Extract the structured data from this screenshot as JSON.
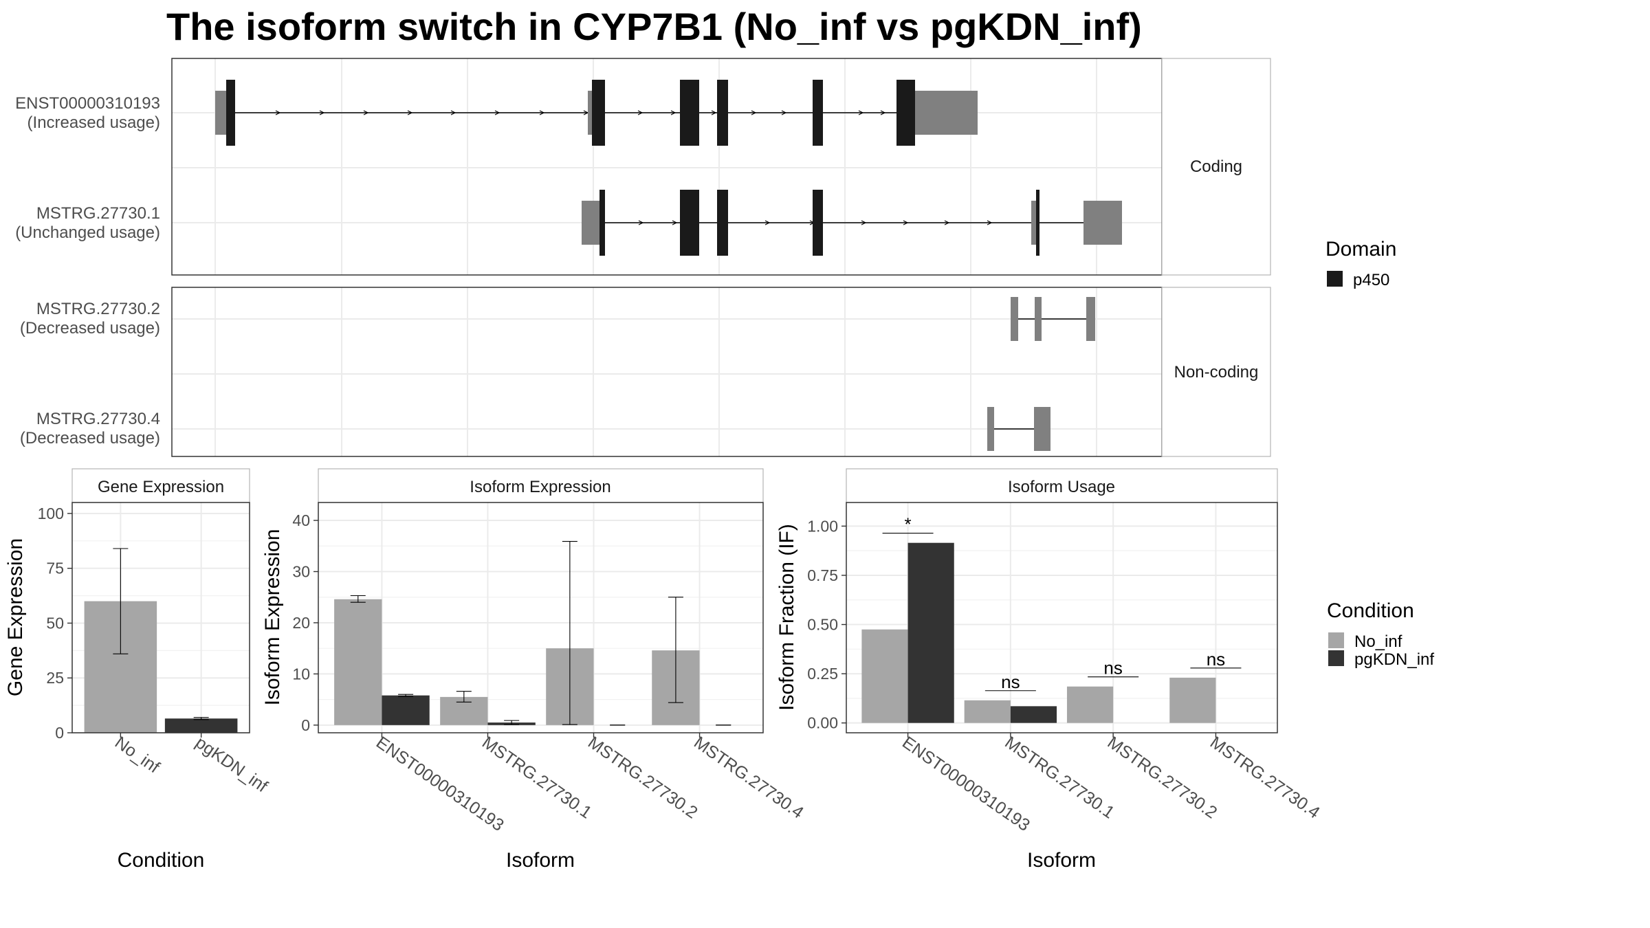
{
  "title": "The isoform switch in CYP7B1 (No_inf vs pgKDN_inf)",
  "colors": {
    "no_inf": "#a6a6a6",
    "pgkdn_inf": "#333333",
    "utr": "#808080",
    "domain": "#1a1a1a",
    "panel_border": "#333333",
    "strip_border": "#b3b3b3",
    "grid": "#ebebeb"
  },
  "structure": {
    "facets": [
      {
        "label": "Coding",
        "isoforms": [
          {
            "name": "ENST00000310193",
            "usage": "(Increased usage)"
          },
          {
            "name": "MSTRG.27730.1",
            "usage": "(Unchanged usage)"
          }
        ]
      },
      {
        "label": "Non-coding",
        "isoforms": [
          {
            "name": "MSTRG.27730.2",
            "usage": "(Decreased usage)"
          },
          {
            "name": "MSTRG.27730.4",
            "usage": "(Decreased usage)"
          }
        ]
      }
    ],
    "legend": {
      "title": "Domain",
      "items": [
        {
          "label": "p450",
          "color": "#1a1a1a"
        }
      ]
    }
  },
  "chart_data": [
    {
      "type": "bar",
      "strip": "Gene Expression",
      "xlabel": "Condition",
      "ylabel": "Gene Expression",
      "categories": [
        "No_inf",
        "pgKDN_inf"
      ],
      "values": [
        60,
        6.5
      ],
      "errors": [
        [
          36,
          84
        ],
        [
          6.0,
          7.0
        ]
      ],
      "ylim": [
        0,
        105
      ],
      "yticks": [
        "0",
        "25",
        "50",
        "75",
        "100"
      ]
    },
    {
      "type": "bar",
      "strip": "Isoform Expression",
      "xlabel": "Isoform",
      "ylabel": "Isoform Expression",
      "categories": [
        "ENST00000310193",
        "MSTRG.27730.1",
        "MSTRG.27730.2",
        "MSTRG.27730.4"
      ],
      "series": [
        {
          "name": "No_inf",
          "values": [
            24.6,
            5.5,
            15.0,
            14.6
          ],
          "errors": [
            [
              24.0,
              25.3
            ],
            [
              4.5,
              6.6
            ],
            [
              0.1,
              35.9
            ],
            [
              4.4,
              25.0
            ]
          ]
        },
        {
          "name": "pgKDN_inf",
          "values": [
            5.8,
            0.5,
            0,
            0
          ],
          "errors": [
            [
              5.6,
              6.0
            ],
            [
              0.1,
              0.9
            ],
            [
              0,
              0
            ],
            [
              0,
              0
            ]
          ]
        }
      ],
      "ylim": [
        -1.5,
        43.5
      ],
      "yticks": [
        "0",
        "10",
        "20",
        "30",
        "40"
      ]
    },
    {
      "type": "bar",
      "strip": "Isoform Usage",
      "xlabel": "Isoform",
      "ylabel": "Isoform Fraction (IF)",
      "categories": [
        "ENST00000310193",
        "MSTRG.27730.1",
        "MSTRG.27730.2",
        "MSTRG.27730.4"
      ],
      "series": [
        {
          "name": "No_inf",
          "values": [
            0.475,
            0.115,
            0.185,
            0.23
          ]
        },
        {
          "name": "pgKDN_inf",
          "values": [
            0.915,
            0.085,
            0,
            0
          ]
        }
      ],
      "significance": [
        "*",
        "ns",
        "ns",
        "ns"
      ],
      "ylim": [
        -0.05,
        1.12
      ],
      "yticks": [
        "0.00",
        "0.25",
        "0.50",
        "0.75",
        "1.00"
      ]
    }
  ],
  "condition_legend": {
    "title": "Condition",
    "items": [
      {
        "label": "No_inf",
        "color": "#a6a6a6"
      },
      {
        "label": "pgKDN_inf",
        "color": "#333333"
      }
    ]
  }
}
